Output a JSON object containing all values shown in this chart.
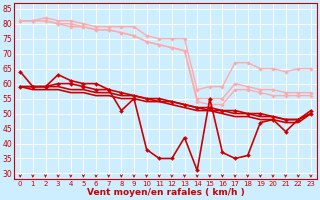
{
  "xlabel": "Vent moyen/en rafales ( km/h )",
  "bg_color": "#cceeff",
  "grid_color": "#ffffff",
  "ylim": [
    28,
    87
  ],
  "xlim": [
    -0.5,
    23.5
  ],
  "yticks": [
    30,
    35,
    40,
    45,
    50,
    55,
    60,
    65,
    70,
    75,
    80,
    85
  ],
  "xticks": [
    0,
    1,
    2,
    3,
    4,
    5,
    6,
    7,
    8,
    9,
    10,
    11,
    12,
    13,
    14,
    15,
    16,
    17,
    18,
    19,
    20,
    21,
    22,
    23
  ],
  "series": [
    {
      "color": "#ffaaaa",
      "lw": 1.0,
      "marker": "D",
      "ms": 1.8,
      "values": [
        81,
        81,
        82,
        81,
        81,
        80,
        79,
        79,
        79,
        79,
        76,
        75,
        75,
        75,
        58,
        59,
        59,
        67,
        67,
        65,
        65,
        64,
        65,
        65
      ]
    },
    {
      "color": "#ffaaaa",
      "lw": 1.0,
      "marker": "D",
      "ms": 1.8,
      "values": [
        81,
        81,
        81,
        80,
        80,
        79,
        78,
        78,
        77,
        76,
        74,
        73,
        72,
        71,
        55,
        55,
        55,
        60,
        59,
        58,
        58,
        57,
        57,
        57
      ]
    },
    {
      "color": "#ffaaaa",
      "lw": 1.0,
      "marker": "D",
      "ms": 1.8,
      "values": [
        81,
        81,
        81,
        80,
        79,
        79,
        78,
        78,
        77,
        76,
        74,
        73,
        72,
        71,
        54,
        53,
        53,
        58,
        58,
        57,
        56,
        56,
        56,
        56
      ]
    },
    {
      "color": "#cc0000",
      "lw": 1.2,
      "marker": "D",
      "ms": 2.0,
      "values": [
        64,
        59,
        59,
        63,
        61,
        60,
        60,
        58,
        51,
        55,
        38,
        35,
        35,
        42,
        31,
        55,
        37,
        35,
        36,
        47,
        48,
        44,
        48,
        51
      ]
    },
    {
      "color": "#cc0000",
      "lw": 1.2,
      "marker": "D",
      "ms": 2.0,
      "values": [
        59,
        59,
        59,
        60,
        60,
        59,
        58,
        58,
        57,
        56,
        55,
        55,
        54,
        53,
        52,
        52,
        51,
        51,
        50,
        50,
        49,
        48,
        48,
        50
      ]
    },
    {
      "color": "#cc0000",
      "lw": 1.2,
      "marker": null,
      "ms": 0,
      "values": [
        59,
        59,
        59,
        59,
        58,
        58,
        57,
        57,
        56,
        56,
        55,
        54,
        54,
        53,
        52,
        51,
        51,
        50,
        50,
        49,
        49,
        48,
        48,
        50
      ]
    },
    {
      "color": "#cc0000",
      "lw": 1.2,
      "marker": null,
      "ms": 0,
      "values": [
        59,
        58,
        58,
        58,
        57,
        57,
        56,
        56,
        55,
        55,
        54,
        54,
        53,
        52,
        51,
        51,
        50,
        49,
        49,
        48,
        48,
        47,
        47,
        50
      ]
    }
  ],
  "arrow_color": "#cc0000",
  "tick_color": "#cc0000",
  "label_color": "#cc0000",
  "xlabel_fontsize": 6.5,
  "tick_fontsize": 5.5
}
